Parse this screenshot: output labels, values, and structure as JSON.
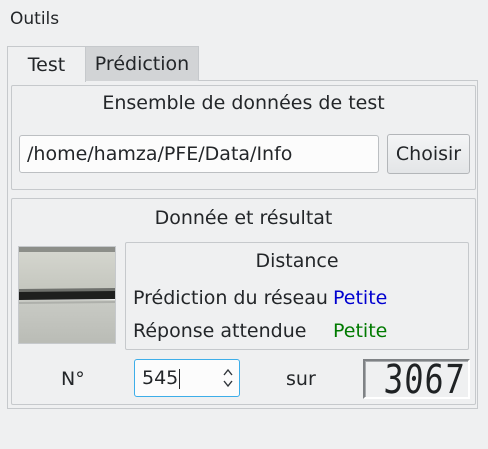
{
  "window": {
    "title": "Outils"
  },
  "tabs": [
    {
      "label": "Test",
      "active": true
    },
    {
      "label": "Prédiction",
      "active": false
    }
  ],
  "dataset_group": {
    "title": "Ensemble de données de test",
    "path_value": "/home/hamza/PFE/Data/Info",
    "choose_label": "Choisir"
  },
  "result_group": {
    "title": "Donnée et résultat",
    "metric_title": "Distance",
    "prediction_label": "Prédiction du réseau",
    "prediction_value": "Petite",
    "expected_label": "Réponse attendue",
    "expected_value": "Petite"
  },
  "navigation": {
    "number_label": "N°",
    "current_index": "545",
    "of_label": "sur",
    "total": "3067"
  },
  "colors": {
    "prediction_color": "#0000d0",
    "expected_color": "#007a00",
    "focus_color": "#3daee9"
  }
}
